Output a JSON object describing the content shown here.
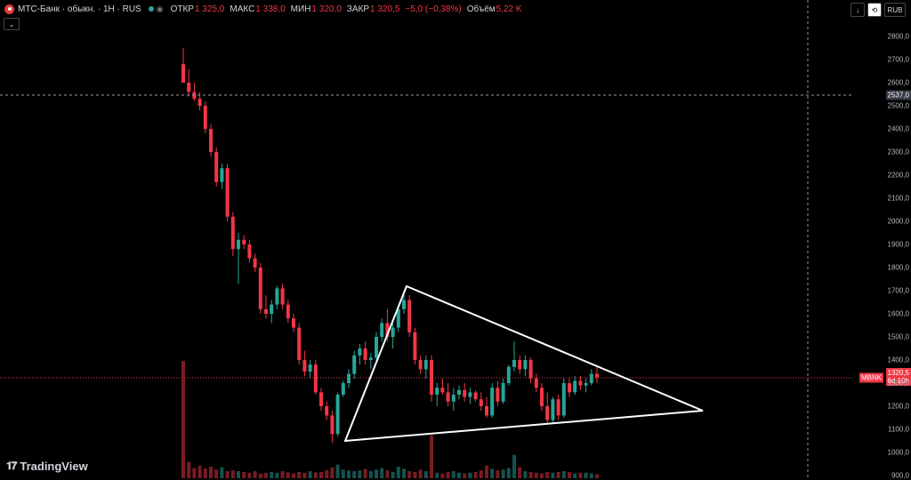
{
  "header": {
    "symbol": "МТС-Банк · обыкн. · 1H · RUS",
    "open_label": "ОТКР",
    "open": "1 325,0",
    "high_label": "МАКС",
    "high": "1 338,0",
    "low_label": "МИН",
    "low": "1 320,0",
    "close_label": "ЗАКР",
    "close": "1 320,5",
    "change": "−5,0 (−0,38%)",
    "volume_label": "Объём",
    "volume": "5,22 K"
  },
  "toolbar": {
    "currency": "RUB",
    "collapse_icon": "chevron-down-icon"
  },
  "price_axis": {
    "ticks": [
      "2800,0",
      "2700,0",
      "2600,0",
      "2500,0",
      "2400,0",
      "2300,0",
      "2200,0",
      "2100,0",
      "2000,0",
      "1900,0",
      "1800,0",
      "1700,0",
      "1600,0",
      "1500,0",
      "1400,0",
      "1300,0",
      "1200,0",
      "1100,0",
      "1000,0",
      "900,0"
    ],
    "crosshair_price": "2537,0",
    "last_price": "1320,5",
    "last_ticker": "MBNK",
    "countdown": "6d 10h"
  },
  "brand": "TradingView",
  "colors": {
    "up": "#26a69a",
    "down": "#f23645",
    "background": "#000000",
    "pattern_line": "#ffffff"
  },
  "chart_data": {
    "type": "candlestick",
    "currency": "RUB",
    "ylim": [
      900,
      2850
    ],
    "pattern": "triangle",
    "candles": [
      [
        2680,
        2750,
        2600,
        2600
      ],
      [
        2600,
        2660,
        2540,
        2560
      ],
      [
        2560,
        2600,
        2520,
        2530
      ],
      [
        2530,
        2560,
        2480,
        2500
      ],
      [
        2500,
        2520,
        2380,
        2400
      ],
      [
        2400,
        2420,
        2280,
        2300
      ],
      [
        2300,
        2320,
        2150,
        2170
      ],
      [
        2170,
        2250,
        2140,
        2230
      ],
      [
        2230,
        2250,
        2000,
        2020
      ],
      [
        2020,
        2040,
        1850,
        1880
      ],
      [
        1880,
        1950,
        1730,
        1920
      ],
      [
        1920,
        1940,
        1880,
        1900
      ],
      [
        1900,
        1920,
        1820,
        1840
      ],
      [
        1840,
        1860,
        1780,
        1800
      ],
      [
        1800,
        1820,
        1600,
        1620
      ],
      [
        1620,
        1680,
        1580,
        1600
      ],
      [
        1600,
        1660,
        1560,
        1640
      ],
      [
        1640,
        1720,
        1620,
        1710
      ],
      [
        1710,
        1730,
        1620,
        1640
      ],
      [
        1640,
        1660,
        1560,
        1580
      ],
      [
        1580,
        1600,
        1520,
        1540
      ],
      [
        1540,
        1560,
        1380,
        1400
      ],
      [
        1400,
        1440,
        1330,
        1350
      ],
      [
        1350,
        1400,
        1320,
        1380
      ],
      [
        1380,
        1400,
        1250,
        1260
      ],
      [
        1260,
        1280,
        1180,
        1200
      ],
      [
        1200,
        1220,
        1140,
        1160
      ],
      [
        1160,
        1180,
        1040,
        1080
      ],
      [
        1080,
        1260,
        1070,
        1250
      ],
      [
        1250,
        1310,
        1240,
        1300
      ],
      [
        1300,
        1360,
        1280,
        1340
      ],
      [
        1340,
        1440,
        1320,
        1420
      ],
      [
        1420,
        1470,
        1380,
        1450
      ],
      [
        1450,
        1480,
        1380,
        1400
      ],
      [
        1400,
        1430,
        1360,
        1410
      ],
      [
        1410,
        1520,
        1400,
        1500
      ],
      [
        1500,
        1580,
        1480,
        1560
      ],
      [
        1560,
        1620,
        1480,
        1500
      ],
      [
        1500,
        1560,
        1450,
        1540
      ],
      [
        1540,
        1640,
        1520,
        1620
      ],
      [
        1620,
        1700,
        1600,
        1660
      ],
      [
        1660,
        1680,
        1500,
        1520
      ],
      [
        1520,
        1540,
        1380,
        1400
      ],
      [
        1400,
        1420,
        1340,
        1360
      ],
      [
        1360,
        1420,
        1320,
        1400
      ],
      [
        1400,
        1420,
        1220,
        1250
      ],
      [
        1250,
        1300,
        1200,
        1280
      ],
      [
        1280,
        1320,
        1250,
        1260
      ],
      [
        1260,
        1300,
        1200,
        1220
      ],
      [
        1220,
        1280,
        1180,
        1250
      ],
      [
        1250,
        1290,
        1230,
        1270
      ],
      [
        1270,
        1300,
        1220,
        1240
      ],
      [
        1240,
        1280,
        1210,
        1260
      ],
      [
        1260,
        1270,
        1220,
        1230
      ],
      [
        1230,
        1260,
        1180,
        1200
      ],
      [
        1200,
        1240,
        1150,
        1160
      ],
      [
        1160,
        1300,
        1150,
        1280
      ],
      [
        1280,
        1310,
        1200,
        1220
      ],
      [
        1220,
        1320,
        1210,
        1300
      ],
      [
        1300,
        1380,
        1290,
        1370
      ],
      [
        1370,
        1480,
        1350,
        1400
      ],
      [
        1400,
        1420,
        1340,
        1360
      ],
      [
        1360,
        1420,
        1330,
        1400
      ],
      [
        1400,
        1410,
        1300,
        1320
      ],
      [
        1320,
        1340,
        1260,
        1280
      ],
      [
        1280,
        1300,
        1180,
        1200
      ],
      [
        1200,
        1260,
        1120,
        1140
      ],
      [
        1140,
        1240,
        1130,
        1230
      ],
      [
        1230,
        1250,
        1140,
        1160
      ],
      [
        1160,
        1320,
        1150,
        1300
      ],
      [
        1300,
        1320,
        1240,
        1260
      ],
      [
        1260,
        1330,
        1250,
        1310
      ],
      [
        1310,
        1330,
        1270,
        1290
      ],
      [
        1290,
        1320,
        1260,
        1300
      ],
      [
        1300,
        1360,
        1290,
        1340
      ],
      [
        1340,
        1380,
        1300,
        1325
      ]
    ],
    "volume": [
      300,
      42,
      26,
      32,
      25,
      30,
      22,
      28,
      18,
      20,
      18,
      16,
      14,
      18,
      12,
      14,
      16,
      14,
      18,
      15,
      12,
      16,
      14,
      18,
      15,
      16,
      20,
      28,
      35,
      22,
      20,
      18,
      20,
      24,
      18,
      22,
      26,
      20,
      16,
      30,
      24,
      18,
      16,
      22,
      18,
      110,
      14,
      12,
      16,
      18,
      14,
      12,
      14,
      16,
      20,
      32,
      24,
      20,
      22,
      26,
      60,
      28,
      18,
      16,
      14,
      12,
      16,
      14,
      16,
      18,
      16,
      12,
      14,
      14,
      12,
      10
    ]
  }
}
